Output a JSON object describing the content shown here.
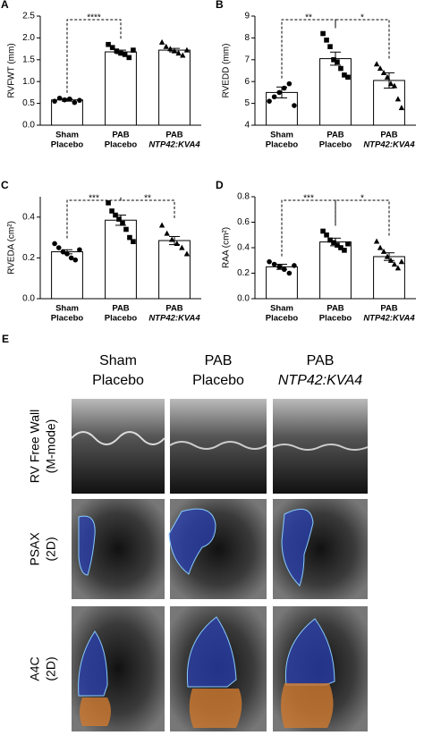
{
  "chart_data": [
    {
      "type": "bar",
      "panel": "A",
      "ylabel": "RVFWT (mm)",
      "categories": [
        [
          "Sham",
          "Placebo"
        ],
        [
          "PAB",
          "Placebo"
        ],
        [
          "PAB",
          "NTP42:KVA4"
        ]
      ],
      "values": [
        0.58,
        1.68,
        1.72
      ],
      "errors": [
        0.03,
        0.04,
        0.04
      ],
      "points": [
        [
          0.55,
          0.62,
          0.58,
          0.6,
          0.52,
          0.57
        ],
        [
          1.85,
          1.78,
          1.7,
          1.65,
          1.62,
          1.55,
          1.72
        ],
        [
          1.9,
          1.8,
          1.75,
          1.7,
          1.65,
          1.6,
          1.72
        ]
      ],
      "markers": [
        "circle",
        "square",
        "triangle"
      ],
      "ylim": [
        0,
        2.5
      ],
      "yticks": [
        {
          "value": 0,
          "label": "0.0"
        },
        0.5,
        {
          "value": 1,
          "label": "1.0"
        },
        1.5,
        {
          "value": 2,
          "label": "2.0"
        },
        2.5
      ],
      "annotations": [
        {
          "from": 0,
          "to": 1,
          "label": "****"
        }
      ]
    },
    {
      "type": "bar",
      "panel": "B",
      "ylabel": "RVEDD (mm)",
      "categories": [
        [
          "Sham",
          "Placebo"
        ],
        [
          "PAB",
          "Placebo"
        ],
        [
          "PAB",
          "NTP42:KVA4"
        ]
      ],
      "values": [
        5.5,
        7.05,
        6.05
      ],
      "errors": [
        0.25,
        0.3,
        0.35
      ],
      "points": [
        [
          5.1,
          5.3,
          5.5,
          5.7,
          5.9,
          4.9
        ],
        [
          8.2,
          7.9,
          7.6,
          7.0,
          6.9,
          6.6,
          6.3,
          6.2
        ],
        [
          6.8,
          6.6,
          6.4,
          6.2,
          5.9,
          5.8,
          5.2,
          4.8
        ]
      ],
      "markers": [
        "circle",
        "square",
        "triangle"
      ],
      "ylim": [
        4,
        9
      ],
      "yticks": [
        4,
        5,
        6,
        7,
        8,
        9
      ],
      "annotations": [
        {
          "from": 0,
          "to": 1,
          "label": "**"
        },
        {
          "from": 1,
          "to": 2,
          "label": "*"
        }
      ]
    },
    {
      "type": "bar",
      "panel": "C",
      "ylabel": "RVEDA (cm²)",
      "categories": [
        [
          "Sham",
          "Placebo"
        ],
        [
          "PAB",
          "Placebo"
        ],
        [
          "PAB",
          "NTP42:KVA4"
        ]
      ],
      "values": [
        0.23,
        0.385,
        0.285
      ],
      "errors": [
        0.01,
        0.025,
        0.02
      ],
      "points": [
        [
          0.27,
          0.25,
          0.23,
          0.22,
          0.2,
          0.19,
          0.24
        ],
        [
          0.47,
          0.43,
          0.41,
          0.39,
          0.37,
          0.34,
          0.3,
          0.28
        ],
        [
          0.36,
          0.32,
          0.29,
          0.27,
          0.25,
          0.22
        ]
      ],
      "markers": [
        "circle",
        "square",
        "triangle"
      ],
      "ylim": [
        0,
        0.5
      ],
      "yticks": [
        {
          "value": 0,
          "label": "0.0"
        },
        0.2,
        0.4
      ],
      "annotations": [
        {
          "from": 0,
          "to": 1,
          "label": "***"
        },
        {
          "from": 1,
          "to": 2,
          "label": "**"
        }
      ]
    },
    {
      "type": "bar",
      "panel": "D",
      "ylabel": "RAA (cm²)",
      "categories": [
        [
          "Sham",
          "Placebo"
        ],
        [
          "PAB",
          "Placebo"
        ],
        [
          "PAB",
          "NTP42:KVA4"
        ]
      ],
      "values": [
        0.25,
        0.445,
        0.33
      ],
      "errors": [
        0.02,
        0.03,
        0.03
      ],
      "points": [
        [
          0.29,
          0.27,
          0.25,
          0.23,
          0.2,
          0.26
        ],
        [
          0.53,
          0.5,
          0.46,
          0.44,
          0.42,
          0.4,
          0.38,
          0.43
        ],
        [
          0.45,
          0.4,
          0.37,
          0.33,
          0.3,
          0.27,
          0.24,
          0.29
        ]
      ],
      "markers": [
        "circle",
        "square",
        "triangle"
      ],
      "ylim": [
        0,
        0.8
      ],
      "yticks": [
        {
          "value": 0,
          "label": "0.0"
        },
        0.2,
        0.4,
        0.6,
        0.8
      ],
      "annotations": [
        {
          "from": 0,
          "to": 1,
          "label": "***"
        },
        {
          "from": 1,
          "to": 2,
          "label": "*"
        }
      ]
    }
  ],
  "panel_e": {
    "label": "E",
    "columns": [
      [
        "Sham",
        "Placebo"
      ],
      [
        "PAB",
        "Placebo"
      ],
      [
        "PAB",
        "NTP42:KVA4"
      ]
    ],
    "rows": [
      [
        "RV Free Wall",
        "(M-mode)"
      ],
      [
        "PSAX",
        "(2D)"
      ],
      [
        "A4C",
        "(2D)"
      ]
    ]
  }
}
